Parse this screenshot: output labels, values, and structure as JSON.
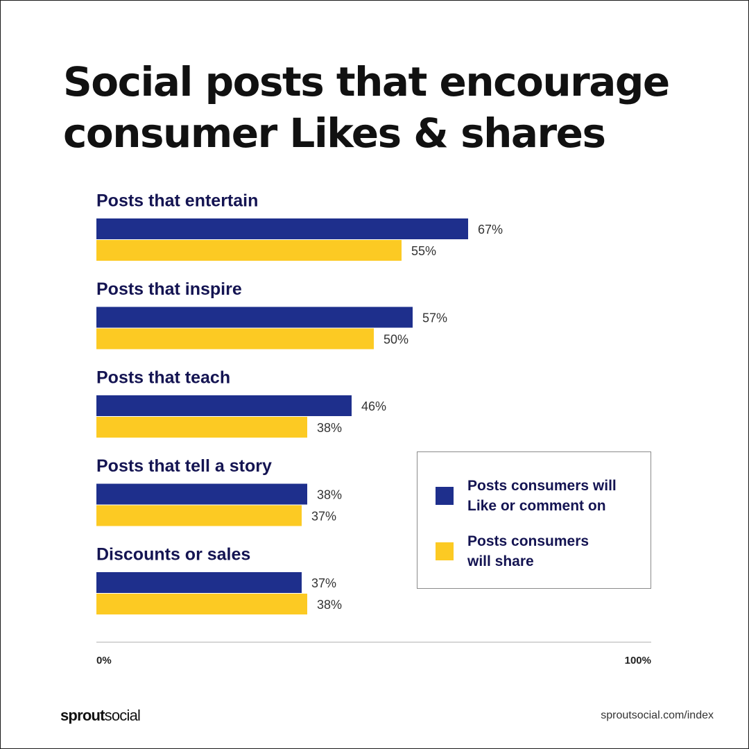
{
  "title_lines": [
    "Social posts that encourage",
    "consumer Likes & shares"
  ],
  "chart_data": {
    "type": "bar",
    "orientation": "horizontal",
    "title": "Social posts that encourage consumer Likes & shares",
    "categories": [
      "Posts that entertain",
      "Posts that inspire",
      "Posts that teach",
      "Posts that tell a story",
      "Discounts or sales"
    ],
    "series": [
      {
        "name": "Posts consumers will Like or comment on",
        "values": [
          67,
          57,
          46,
          38,
          37
        ],
        "labels": [
          "67%",
          "57%",
          "46%",
          "38%",
          "37%"
        ],
        "color": "#1e2f8c"
      },
      {
        "name": "Posts consumers will share",
        "values": [
          55,
          50,
          38,
          37,
          38
        ],
        "labels": [
          "55%",
          "50%",
          "38%",
          "37%",
          "38%"
        ],
        "color": "#fcca23"
      }
    ],
    "xlim": [
      0,
      100
    ],
    "x_tick_labels": [
      "0%",
      "100%"
    ],
    "grid": false,
    "legend_position": "center-right"
  },
  "legend": {
    "items": [
      {
        "label": "Posts consumers will\nLike or comment on",
        "color": "#1e2f8c"
      },
      {
        "label": "Posts consumers\nwill share",
        "color": "#fcca23"
      }
    ]
  },
  "colors": {
    "axis_line": "#d6d6d6",
    "category_text": "#141452"
  },
  "footer": {
    "brand_strong": "sprout",
    "brand_rest": "social",
    "url": "sproutsocial.com/index"
  }
}
